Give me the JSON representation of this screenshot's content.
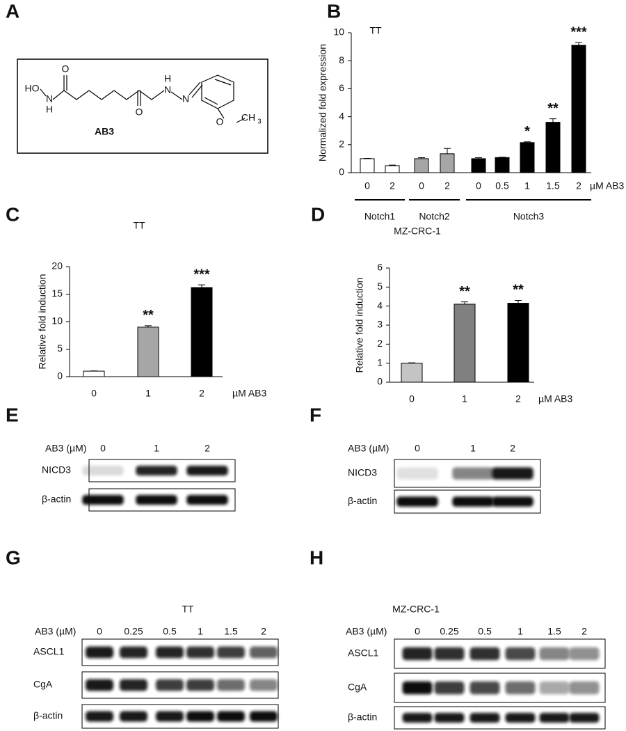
{
  "panel_labels": [
    "A",
    "B",
    "C",
    "D",
    "E",
    "F",
    "G",
    "H"
  ],
  "compound": {
    "name": "AB3",
    "atom_labels": [
      "HO",
      "N",
      "H",
      "O",
      "O",
      "H",
      "N",
      "N",
      "O",
      "CH",
      "3"
    ]
  },
  "chart_data": [
    {
      "type": "bar",
      "title": "TT",
      "y_label": "Normalized fold expression",
      "x_label": "µM AB3",
      "ylim": [
        0,
        10
      ],
      "yticks": [
        0,
        2,
        4,
        6,
        8,
        10
      ],
      "groups": [
        {
          "name": "Notch1",
          "color": "#ffffff",
          "categories": [
            "0",
            "2"
          ],
          "values": [
            1.0,
            0.5
          ],
          "errors": [
            0.02,
            0.04
          ],
          "significance": [
            null,
            null
          ]
        },
        {
          "name": "Notch2",
          "color": "#a6a6a6",
          "categories": [
            "0",
            "2"
          ],
          "values": [
            1.0,
            1.35
          ],
          "errors": [
            0.07,
            0.38
          ],
          "significance": [
            null,
            null
          ]
        },
        {
          "name": "Notch3",
          "color": "#000000",
          "categories": [
            "0",
            "0.5",
            "1",
            "1.5",
            "2"
          ],
          "values": [
            1.0,
            1.08,
            2.15,
            3.6,
            9.1
          ],
          "errors": [
            0.07,
            0.03,
            0.05,
            0.25,
            0.2
          ],
          "significance": [
            null,
            null,
            "*",
            "**",
            "***"
          ]
        }
      ]
    },
    {
      "type": "bar",
      "title": "TT",
      "y_label": "Relative  fold induction",
      "x_label": "µM AB3",
      "ylim": [
        0,
        20
      ],
      "yticks": [
        0,
        5,
        10,
        15,
        20
      ],
      "categories": [
        "0",
        "1",
        "2"
      ],
      "values": [
        1.0,
        9.0,
        16.2
      ],
      "errors": [
        0.05,
        0.25,
        0.5
      ],
      "colors": [
        "#ffffff",
        "#a6a6a6",
        "#000000"
      ],
      "significance": [
        null,
        "**",
        "***"
      ]
    },
    {
      "type": "bar",
      "title": "MZ-CRC-1",
      "y_label": "Relative  fold induction",
      "x_label": "µM AB3",
      "ylim": [
        0,
        6
      ],
      "yticks": [
        0,
        1,
        2,
        3,
        4,
        5,
        6
      ],
      "categories": [
        "0",
        "1",
        "2"
      ],
      "values": [
        1.0,
        4.1,
        4.15
      ],
      "errors": [
        0.02,
        0.12,
        0.15
      ],
      "colors": [
        "#c4c4c4",
        "#808080",
        "#000000"
      ],
      "significance": [
        null,
        "**",
        "**"
      ]
    }
  ],
  "blots": [
    {
      "title": null,
      "header": "AB3 (µM)",
      "lanes": [
        "0",
        "1",
        "2"
      ],
      "rows": [
        "NICD3",
        "β-actin"
      ]
    },
    {
      "title": null,
      "header": "AB3 (µM)",
      "lanes": [
        "0",
        "1",
        "2"
      ],
      "rows": [
        "NICD3",
        "β-actin"
      ]
    },
    {
      "title": "TT",
      "header": "AB3 (µM)",
      "lanes": [
        "0",
        "0.25",
        "0.5",
        "1",
        "1.5",
        "2"
      ],
      "rows": [
        "ASCL1",
        "CgA",
        "β-actin"
      ]
    },
    {
      "title": "MZ-CRC-1",
      "header": "AB3 (µM)",
      "lanes": [
        "0",
        "0.25",
        "0.5",
        "1",
        "1.5",
        "2"
      ],
      "rows": [
        "ASCL1",
        "CgA",
        "β-actin"
      ]
    }
  ]
}
